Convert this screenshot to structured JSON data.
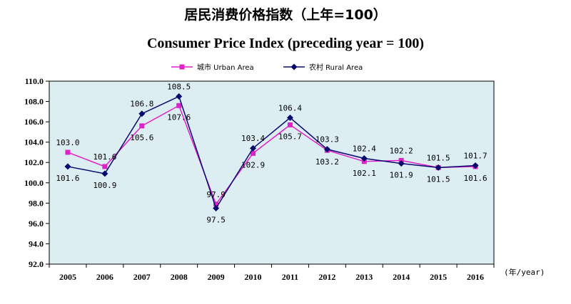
{
  "title_cn": "居民消费价格指数（上年=100）",
  "title_en": "Consumer Price Index (preceding year = 100)",
  "colors": {
    "urban": "#e020c8",
    "rural": "#0a0a6e",
    "plot_bg": "#ddeef3"
  },
  "chart_data": {
    "type": "line",
    "title": "Consumer Price Index (preceding year = 100)",
    "x_unit_label": "(年/year)",
    "categories": [
      "2005",
      "2006",
      "2007",
      "2008",
      "2009",
      "2010",
      "2011",
      "2012",
      "2013",
      "2014",
      "2015",
      "2016"
    ],
    "ylim": [
      92.0,
      110.0
    ],
    "yticks": [
      "92.0",
      "94.0",
      "96.0",
      "98.0",
      "100.0",
      "102.0",
      "104.0",
      "106.0",
      "108.0",
      "110.0"
    ],
    "grid": false,
    "legend_position": "top-center",
    "series": [
      {
        "name": "城市 Urban Area",
        "marker": "square",
        "values": [
          103.0,
          101.6,
          105.6,
          107.6,
          97.9,
          102.9,
          105.7,
          103.2,
          102.1,
          102.2,
          101.5,
          101.6
        ],
        "labels": [
          "103.0",
          "101.6",
          "105.6",
          "107.6",
          "97.9",
          "102.9",
          "105.7",
          "103.2",
          "102.1",
          "102.2",
          "101.5",
          "101.6"
        ]
      },
      {
        "name": "农村 Rural Area",
        "marker": "diamond",
        "values": [
          101.6,
          100.9,
          106.8,
          108.5,
          97.5,
          103.4,
          106.4,
          103.3,
          102.4,
          101.9,
          101.5,
          101.7
        ],
        "labels": [
          "101.6",
          "100.9",
          "106.8",
          "108.5",
          "97.5",
          "103.4",
          "106.4",
          "103.3",
          "102.4",
          "101.9",
          "101.5",
          "101.7"
        ]
      }
    ]
  }
}
